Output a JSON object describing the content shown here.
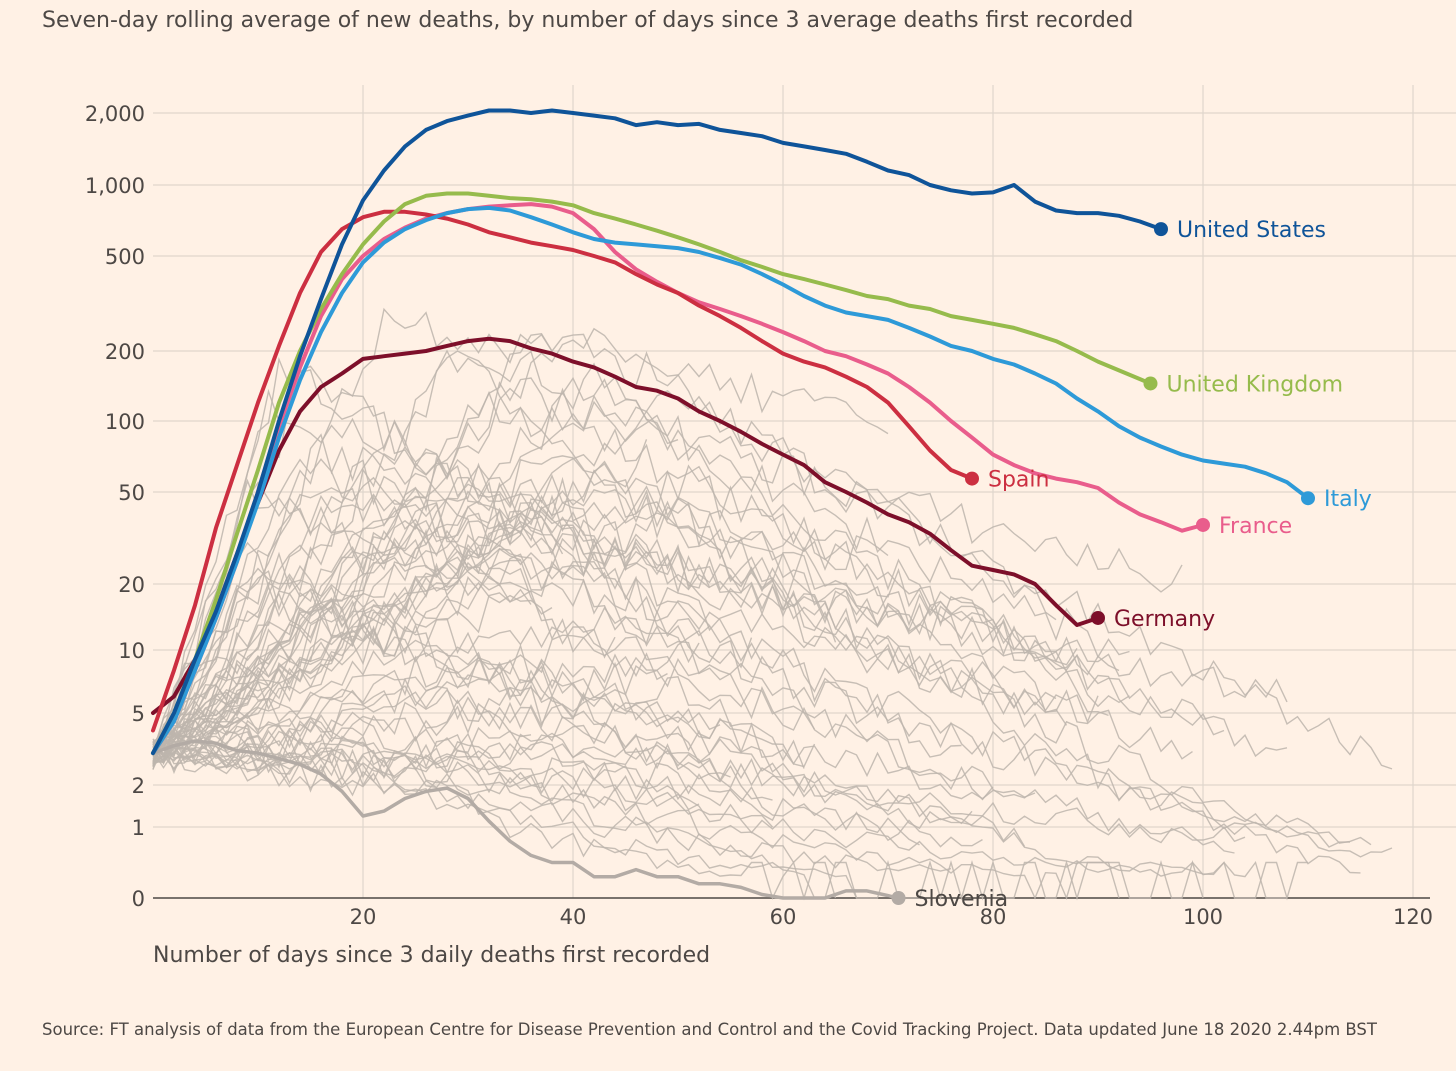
{
  "chart_data": {
    "type": "line",
    "title": "Seven-day rolling average of new deaths, by number of days since 3 average deaths first recorded",
    "xlabel": "Number of days since 3 daily deaths first recorded",
    "ylabel": "",
    "yscale": "log",
    "xlim": [
      0,
      123
    ],
    "x_ticks": [
      20,
      40,
      60,
      80,
      100,
      120
    ],
    "y_ticks": [
      0,
      1,
      2,
      5,
      10,
      20,
      50,
      100,
      200,
      500,
      1000,
      2000
    ],
    "y_tick_labels": [
      "0",
      "1",
      "2",
      "5",
      "10",
      "20",
      "50",
      "100",
      "200",
      "500",
      "1,000",
      "2,000"
    ],
    "grid": true,
    "background_lines": "many other countries shown as thin grey lines",
    "series": [
      {
        "name": "United States",
        "color": "#0f5499",
        "x": [
          0,
          2,
          4,
          6,
          8,
          10,
          12,
          14,
          16,
          18,
          20,
          22,
          24,
          26,
          28,
          30,
          32,
          34,
          36,
          38,
          40,
          42,
          44,
          46,
          48,
          50,
          52,
          54,
          56,
          58,
          60,
          62,
          64,
          66,
          68,
          70,
          72,
          74,
          76,
          78,
          80,
          82,
          84,
          86,
          88,
          90,
          92,
          94,
          96
        ],
        "values": [
          3,
          5,
          9,
          15,
          27,
          50,
          100,
          190,
          330,
          560,
          860,
          1150,
          1450,
          1700,
          1850,
          1950,
          2050,
          2050,
          2000,
          2050,
          2000,
          1950,
          1900,
          1780,
          1830,
          1780,
          1800,
          1700,
          1650,
          1600,
          1500,
          1450,
          1400,
          1350,
          1250,
          1150,
          1100,
          1000,
          950,
          920,
          930,
          1000,
          850,
          780,
          760,
          760,
          740,
          700,
          650
        ]
      },
      {
        "name": "United Kingdom",
        "color": "#96bb4c",
        "x": [
          0,
          2,
          4,
          6,
          8,
          10,
          12,
          14,
          16,
          18,
          20,
          22,
          24,
          26,
          28,
          30,
          32,
          34,
          36,
          38,
          40,
          42,
          44,
          46,
          48,
          50,
          52,
          54,
          56,
          58,
          60,
          62,
          64,
          66,
          68,
          70,
          72,
          74,
          76,
          78,
          80,
          82,
          84,
          86,
          88,
          90,
          92,
          95
        ],
        "values": [
          3,
          5,
          9,
          17,
          33,
          62,
          120,
          200,
          300,
          420,
          560,
          700,
          830,
          900,
          920,
          920,
          900,
          880,
          870,
          850,
          820,
          760,
          720,
          680,
          640,
          600,
          560,
          520,
          480,
          450,
          420,
          400,
          380,
          360,
          340,
          330,
          310,
          300,
          280,
          270,
          260,
          250,
          235,
          220,
          200,
          180,
          165,
          145
        ]
      },
      {
        "name": "Italy",
        "color": "#2e9ad8",
        "x": [
          0,
          2,
          4,
          6,
          8,
          10,
          12,
          14,
          16,
          18,
          20,
          22,
          24,
          26,
          28,
          30,
          32,
          34,
          36,
          38,
          40,
          42,
          44,
          46,
          48,
          50,
          52,
          54,
          56,
          58,
          60,
          62,
          64,
          66,
          68,
          70,
          72,
          74,
          76,
          78,
          80,
          82,
          84,
          86,
          88,
          90,
          92,
          94,
          96,
          98,
          100,
          102,
          104,
          106,
          108,
          110
        ],
        "values": [
          3,
          4.5,
          8,
          14,
          25,
          45,
          85,
          150,
          240,
          350,
          470,
          570,
          650,
          710,
          760,
          790,
          800,
          780,
          730,
          680,
          630,
          590,
          570,
          560,
          550,
          540,
          520,
          490,
          460,
          420,
          380,
          340,
          310,
          290,
          280,
          270,
          250,
          230,
          210,
          200,
          185,
          175,
          160,
          145,
          125,
          110,
          95,
          85,
          78,
          72,
          68,
          66,
          64,
          60,
          55,
          47
        ]
      },
      {
        "name": "Spain",
        "color": "#cc2f41",
        "x": [
          0,
          2,
          4,
          6,
          8,
          10,
          12,
          14,
          16,
          18,
          20,
          22,
          24,
          26,
          28,
          30,
          32,
          34,
          36,
          38,
          40,
          42,
          44,
          46,
          48,
          50,
          52,
          54,
          56,
          58,
          60,
          62,
          64,
          66,
          68,
          70,
          72,
          74,
          76,
          78
        ],
        "values": [
          4,
          8,
          16,
          35,
          65,
          120,
          210,
          350,
          520,
          650,
          730,
          770,
          770,
          750,
          720,
          680,
          630,
          600,
          570,
          550,
          530,
          500,
          470,
          420,
          380,
          350,
          310,
          280,
          250,
          220,
          195,
          180,
          170,
          155,
          140,
          120,
          95,
          75,
          62,
          57
        ]
      },
      {
        "name": "France",
        "color": "#e95d8c",
        "x": [
          0,
          2,
          4,
          6,
          8,
          10,
          12,
          14,
          16,
          18,
          20,
          22,
          24,
          26,
          28,
          30,
          32,
          34,
          36,
          38,
          40,
          42,
          44,
          46,
          48,
          50,
          52,
          54,
          56,
          58,
          60,
          62,
          64,
          66,
          68,
          70,
          72,
          74,
          76,
          78,
          80,
          82,
          84,
          86,
          88,
          90,
          92,
          94,
          96,
          98,
          100
        ],
        "values": [
          3,
          4.5,
          8,
          14,
          25,
          50,
          95,
          170,
          280,
          400,
          500,
          590,
          660,
          720,
          760,
          790,
          810,
          820,
          830,
          810,
          760,
          650,
          520,
          440,
          390,
          350,
          320,
          300,
          280,
          260,
          240,
          220,
          200,
          190,
          175,
          160,
          140,
          120,
          100,
          85,
          72,
          65,
          60,
          57,
          55,
          52,
          45,
          40,
          37,
          34,
          36
        ]
      },
      {
        "name": "Germany",
        "color": "#7d0f2a",
        "x": [
          0,
          2,
          4,
          6,
          8,
          10,
          12,
          14,
          16,
          18,
          20,
          22,
          24,
          26,
          28,
          30,
          32,
          34,
          36,
          38,
          40,
          42,
          44,
          46,
          48,
          50,
          52,
          54,
          56,
          58,
          60,
          62,
          64,
          66,
          68,
          70,
          72,
          74,
          76,
          78,
          80,
          82,
          84,
          86,
          88,
          90
        ],
        "values": [
          5,
          6,
          9,
          15,
          27,
          45,
          75,
          110,
          140,
          160,
          185,
          190,
          195,
          200,
          210,
          220,
          225,
          220,
          205,
          195,
          180,
          170,
          155,
          140,
          135,
          125,
          110,
          100,
          90,
          80,
          72,
          65,
          55,
          50,
          45,
          40,
          37,
          33,
          28,
          24,
          23,
          22,
          20,
          16,
          13,
          14
        ]
      },
      {
        "name": "Slovenia",
        "color": "#b3aba5",
        "x": [
          0,
          2,
          4,
          6,
          8,
          10,
          12,
          14,
          16,
          18,
          20,
          22,
          24,
          26,
          28,
          30,
          32,
          34,
          36,
          38,
          40,
          42,
          44,
          46,
          48,
          50,
          52,
          54,
          56,
          58,
          60,
          62,
          64,
          66,
          68,
          71
        ],
        "values": [
          3,
          3.3,
          3.5,
          3.4,
          3.1,
          3,
          2.8,
          2.6,
          2.3,
          1.8,
          1.2,
          1.3,
          1.6,
          1.8,
          1.9,
          1.6,
          1.1,
          0.8,
          0.6,
          0.5,
          0.5,
          0.3,
          0.3,
          0.4,
          0.3,
          0.3,
          0.2,
          0.2,
          0.15,
          0.05,
          0,
          0,
          0,
          0.1,
          0.1,
          0
        ]
      }
    ],
    "source": "Source: FT analysis of data from the European Centre for Disease Prevention and Control and the Covid Tracking Project. Data updated June 18 2020 2.44pm BST"
  }
}
